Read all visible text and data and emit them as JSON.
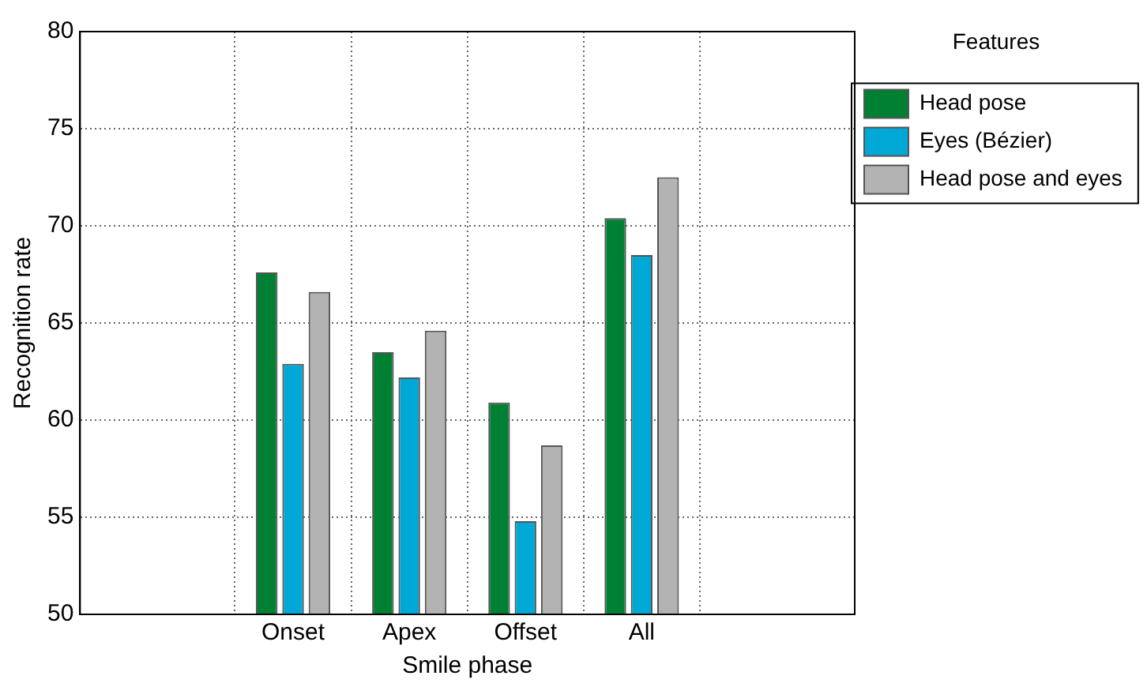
{
  "chart_data": {
    "type": "bar",
    "xlabel": "Smile phase",
    "ylabel": "Recognition rate",
    "legend_title": "Features",
    "categories": [
      "Onset",
      "Apex",
      "Offset",
      "All"
    ],
    "series": [
      {
        "name": "Head pose",
        "color": "#008033",
        "values": [
          67.6,
          63.5,
          60.9,
          70.4
        ]
      },
      {
        "name": "Eyes (Bézier)",
        "color": "#00a8d6",
        "values": [
          62.9,
          62.2,
          54.8,
          68.5
        ]
      },
      {
        "name": "Head pose and eyes",
        "color": "#b3b3b3",
        "values": [
          66.6,
          64.6,
          58.7,
          72.5
        ]
      }
    ],
    "ylim": [
      50,
      80
    ],
    "yticks": [
      50,
      55,
      60,
      65,
      70,
      75,
      80
    ],
    "grid": true,
    "legend": "right"
  }
}
